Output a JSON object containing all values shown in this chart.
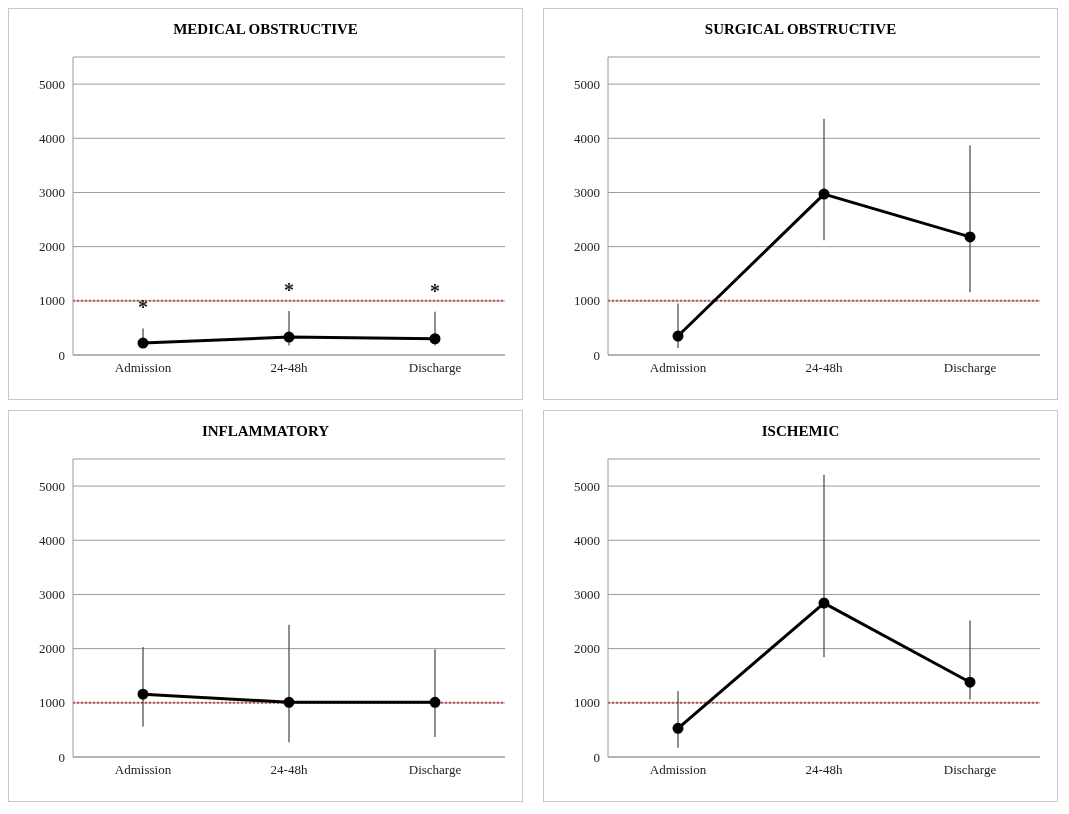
{
  "chart_data": [
    {
      "type": "line",
      "title": "MEDICAL OBSTRUCTIVE",
      "categories": [
        "Admission",
        "24-48h",
        "Discharge"
      ],
      "series": [
        {
          "color": "#000000",
          "values": [
            220,
            330,
            300
          ],
          "errors": [
            [
              175,
              490
            ],
            [
              175,
              810
            ],
            [
              175,
              800
            ]
          ]
        }
      ],
      "ylim": [
        0,
        5500
      ],
      "yticks": [
        0,
        1000,
        2000,
        3000,
        4000,
        5000
      ],
      "grid": "y",
      "legend": false,
      "marker": "circle",
      "line_style": "solid",
      "ref_lines": [
        {
          "axis": "y",
          "value": 1000,
          "color": "#c0504d",
          "line_style": "dotted"
        }
      ],
      "annotations": [
        "*",
        "*",
        "*"
      ]
    },
    {
      "type": "line",
      "title": "SURGICAL OBSTRUCTIVE",
      "categories": [
        "Admission",
        "24-48h",
        "Discharge"
      ],
      "series": [
        {
          "color": "#000000",
          "values": [
            350,
            2970,
            2180
          ],
          "errors": [
            [
              130,
              950
            ],
            [
              2120,
              4360
            ],
            [
              1160,
              3870
            ]
          ]
        }
      ],
      "ylim": [
        0,
        5500
      ],
      "yticks": [
        0,
        1000,
        2000,
        3000,
        4000,
        5000
      ],
      "grid": "y",
      "legend": false,
      "marker": "circle",
      "line_style": "solid",
      "ref_lines": [
        {
          "axis": "y",
          "value": 1000,
          "color": "#c0504d",
          "line_style": "dotted"
        }
      ]
    },
    {
      "type": "line",
      "title": "INFLAMMATORY",
      "categories": [
        "Admission",
        "24-48h",
        "Discharge"
      ],
      "series": [
        {
          "color": "#000000",
          "values": [
            1160,
            1010,
            1010
          ],
          "errors": [
            [
              560,
              2030
            ],
            [
              270,
              2440
            ],
            [
              370,
              1990
            ]
          ]
        }
      ],
      "ylim": [
        0,
        5500
      ],
      "yticks": [
        0,
        1000,
        2000,
        3000,
        4000,
        5000
      ],
      "grid": "y",
      "legend": false,
      "marker": "circle",
      "line_style": "solid",
      "ref_lines": [
        {
          "axis": "y",
          "value": 1000,
          "color": "#c0504d",
          "line_style": "dotted"
        }
      ]
    },
    {
      "type": "line",
      "title": "ISCHEMIC",
      "categories": [
        "Admission",
        "24-48h",
        "Discharge"
      ],
      "series": [
        {
          "color": "#000000",
          "values": [
            530,
            2840,
            1380
          ],
          "errors": [
            [
              170,
              1220
            ],
            [
              1840,
              5210
            ],
            [
              1060,
              2520
            ]
          ]
        }
      ],
      "ylim": [
        0,
        5500
      ],
      "yticks": [
        0,
        1000,
        2000,
        3000,
        4000,
        5000
      ],
      "grid": "y",
      "legend": false,
      "marker": "circle",
      "line_style": "solid",
      "ref_lines": [
        {
          "axis": "y",
          "value": 1000,
          "color": "#c0504d",
          "line_style": "dotted"
        }
      ]
    }
  ]
}
